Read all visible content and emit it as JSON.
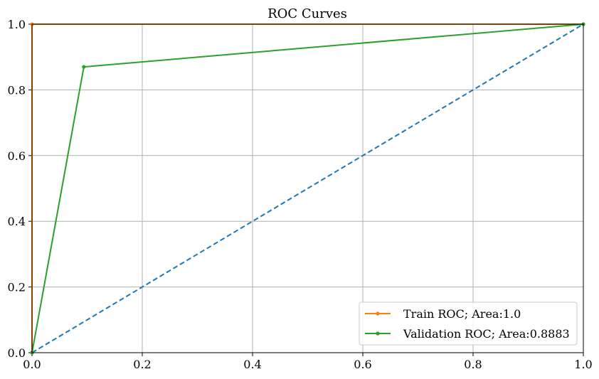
{
  "chart_data": {
    "type": "line",
    "title": "ROC Curves",
    "xlabel": "",
    "ylabel": "",
    "xlim": [
      0.0,
      1.0
    ],
    "ylim": [
      0.0,
      1.0
    ],
    "x_ticks": [
      "0.0",
      "0.2",
      "0.4",
      "0.6",
      "0.8",
      "1.0"
    ],
    "y_ticks": [
      "0.0",
      "0.2",
      "0.4",
      "0.6",
      "0.8",
      "1.0"
    ],
    "grid": true,
    "legend_position": "lower-right",
    "series": [
      {
        "name": "Train ROC; Area:1.0",
        "color": "#ff7f0e",
        "marker": "point",
        "line_style": "solid",
        "x": [
          0.0,
          0.0,
          1.0
        ],
        "y": [
          0.0,
          1.0,
          1.0
        ]
      },
      {
        "name": "Validation ROC; Area:0.8883",
        "color": "#2ca02c",
        "marker": "point",
        "line_style": "solid",
        "x": [
          0.0,
          0.094,
          1.0
        ],
        "y": [
          0.0,
          0.87,
          1.0
        ]
      }
    ],
    "reference_line": {
      "color": "#1f77b4",
      "line_style": "dashed",
      "x": [
        0.0,
        1.0
      ],
      "y": [
        0.0,
        1.0
      ]
    }
  }
}
